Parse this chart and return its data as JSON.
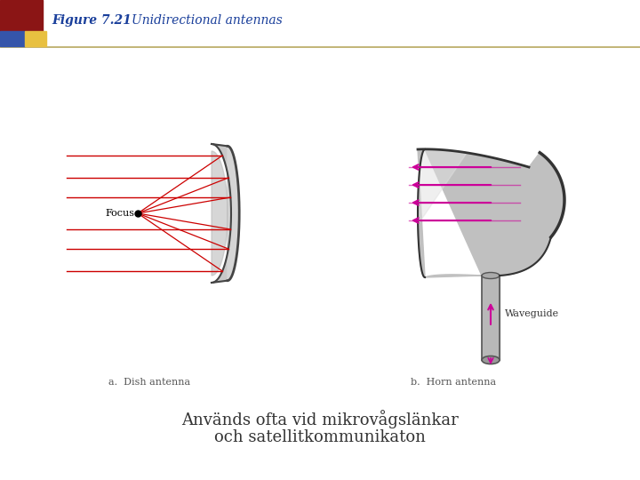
{
  "title_bold": "Figure 7.21",
  "title_italic": "Unidirectional antennas",
  "title_color": "#1A3F9B",
  "subtitle_line1": "Används ofta vid mikrovågslänkar",
  "subtitle_line2": "och satellitkommunikaton",
  "subtitle_color": "#333333",
  "subtitle_fontsize": 13,
  "label_a": "a.  Dish antenna",
  "label_b": "b.  Horn antenna",
  "label_color": "#555555",
  "label_fontsize": 8,
  "bg_color": "#FFFFFF",
  "header_line_color": "#B8A860",
  "ray_color": "#CC0000",
  "arrow_color": "#CC0099",
  "dish_fill": "#C8C8C8",
  "dish_edge": "#444444",
  "horn_fill": "#C0C0C0",
  "horn_dark": "#333333",
  "wg_fill": "#B8B8B8",
  "wg_edge": "#555555"
}
